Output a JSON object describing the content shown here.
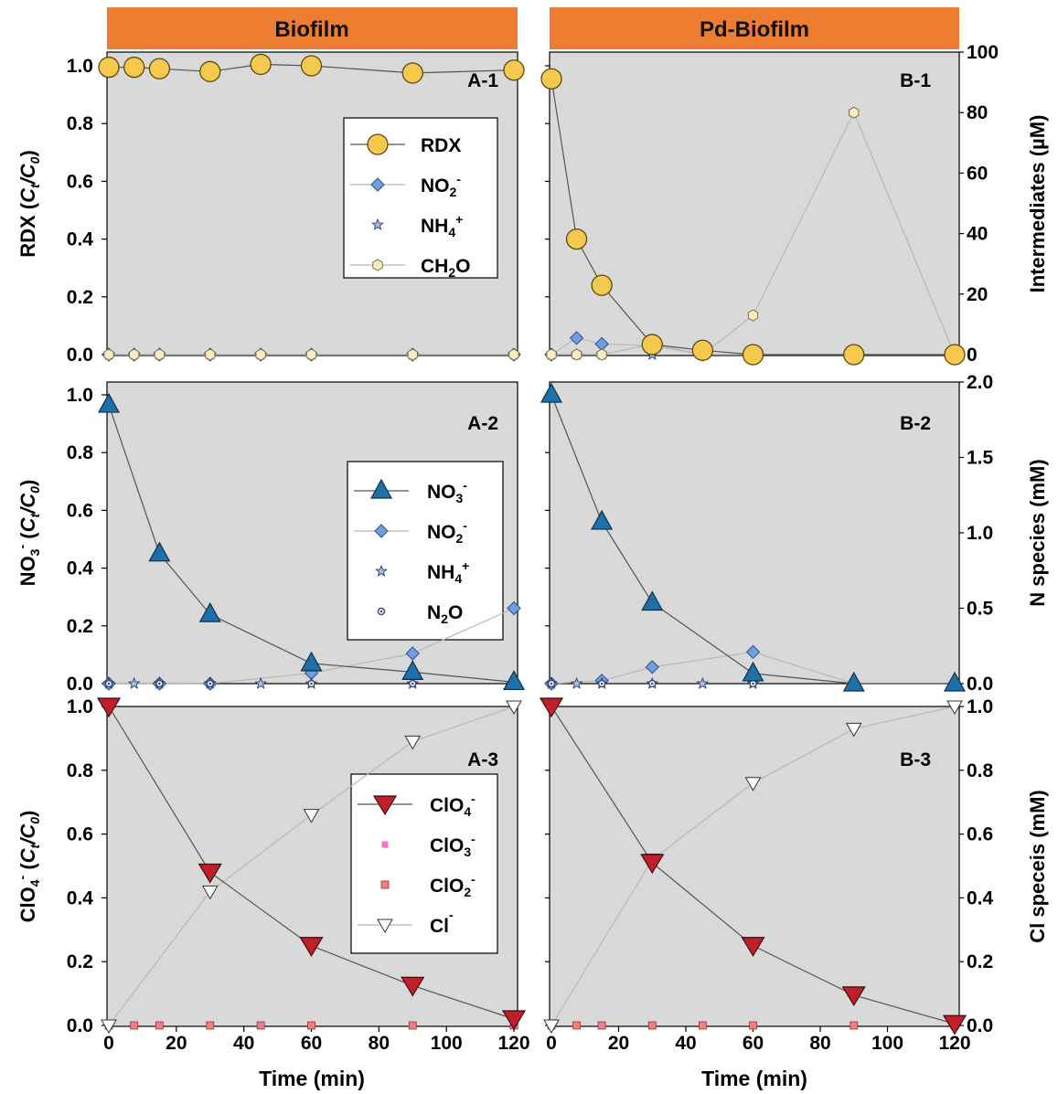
{
  "headers": {
    "left": "Biofilm",
    "right": "Pd-Biofilm"
  },
  "left_ylabels": {
    "row1": {
      "main": "RDX (",
      "c": "C",
      "t": "t",
      "slash": "/",
      "c0": "C",
      "zero": "0",
      "close": ")"
    },
    "row2": {
      "pre": "NO",
      "sub": "3",
      "sup": "-",
      "open": " (",
      "c": "C",
      "t": "t",
      "slash": "/",
      "c0": "C",
      "zero": "0",
      "close": ")"
    },
    "row3": {
      "pre": "ClO",
      "sub": "4",
      "sup": "-",
      "open": " (",
      "c": "C",
      "t": "t",
      "slash": "/",
      "c0": "C",
      "zero": "0",
      "close": ")"
    }
  },
  "right_ylabels": {
    "row1": "Intermediates (µM)",
    "row2": "N species (mM)",
    "row3": "Cl speceis (mM)"
  },
  "xlabel": "Time (min)",
  "x_ticks_text": [
    "0",
    "20",
    "40",
    "60",
    "80",
    "100",
    "120"
  ],
  "left_y_ticks_text": [
    "0.0",
    "0.2",
    "0.4",
    "0.6",
    "0.8",
    "1.0"
  ],
  "right_ticks_text": {
    "row1": [
      "0",
      "20",
      "40",
      "60",
      "80",
      "100"
    ],
    "row2": [
      "0.0",
      "0.5",
      "1.0",
      "1.5",
      "2.0"
    ],
    "row3": [
      "0.0",
      "0.2",
      "0.4",
      "0.6",
      "0.8",
      "1.0"
    ]
  },
  "panel_tags": {
    "A1": "A-1",
    "B1": "B-1",
    "A2": "A-2",
    "B2": "B-2",
    "A3": "A-3",
    "B3": "B-3"
  },
  "legends": {
    "row1": [
      {
        "pre": "RDX",
        "sub": "",
        "sup": "",
        "post": ""
      },
      {
        "pre": "NO",
        "sub": "2",
        "sup": "-",
        "post": ""
      },
      {
        "pre": "NH",
        "sub": "4",
        "sup": "+",
        "post": ""
      },
      {
        "pre": "CH",
        "sub": "2",
        "sup": "",
        "post": "O"
      }
    ],
    "row2": [
      {
        "pre": "NO",
        "sub": "3",
        "sup": "-",
        "post": ""
      },
      {
        "pre": "NO",
        "sub": "2",
        "sup": "-",
        "post": ""
      },
      {
        "pre": "NH",
        "sub": "4",
        "sup": "+",
        "post": ""
      },
      {
        "pre": "N",
        "sub": "2",
        "sup": "",
        "post": "O"
      }
    ],
    "row3": [
      {
        "pre": "ClO",
        "sub": "4",
        "sup": "-",
        "post": ""
      },
      {
        "pre": "ClO",
        "sub": "3",
        "sup": "-",
        "post": ""
      },
      {
        "pre": "ClO",
        "sub": "2",
        "sup": "-",
        "post": ""
      },
      {
        "pre": "Cl",
        "sub": "",
        "sup": "-",
        "post": ""
      }
    ]
  },
  "colors": {
    "header": "#ED7D31",
    "plot_bg": "#D9D9D9",
    "rdx": "#F5C94E",
    "nitrate": "#1F6FA8",
    "nitrite": "#6F9FE0",
    "ammonium": "#A8BEE8",
    "n2o": "#3A4E7A",
    "ch2o": "#FBEBC0",
    "perchlorate": "#C0202A",
    "chlorate": "#FF6FC8",
    "chlorite": "#F08080",
    "chloride": "#FFFFFF"
  },
  "chart_data": [
    {
      "panel": "A-1",
      "type": "line",
      "xlim": [
        0,
        120
      ],
      "y_left_lim": [
        0,
        1.0
      ],
      "y_right_lim": [
        0,
        100
      ],
      "grid": false,
      "series": [
        {
          "name": "RDX",
          "axis": "left",
          "marker": "circle-large",
          "x": [
            0,
            7.5,
            15,
            30,
            45,
            60,
            90,
            120
          ],
          "y": [
            0.995,
            0.995,
            0.99,
            0.98,
            1.005,
            1.0,
            0.975,
            0.985
          ]
        },
        {
          "name": "NO2-",
          "axis": "right",
          "marker": "diamond",
          "x": [
            0,
            7.5,
            15,
            30,
            45,
            60,
            90,
            120
          ],
          "y": [
            0,
            0,
            0,
            0,
            0,
            0,
            0,
            0
          ]
        },
        {
          "name": "NH4+",
          "axis": "right",
          "marker": "star",
          "x": [
            0,
            7.5,
            15,
            30,
            45,
            60,
            90,
            120
          ],
          "y": [
            0,
            0,
            0,
            0,
            0,
            0,
            0,
            0
          ]
        },
        {
          "name": "CH2O",
          "axis": "right",
          "marker": "hexagon",
          "x": [
            0,
            7.5,
            15,
            30,
            45,
            60,
            90,
            120
          ],
          "y": [
            0,
            0,
            0,
            0,
            0,
            0,
            0,
            0
          ]
        }
      ]
    },
    {
      "panel": "B-1",
      "type": "line",
      "xlim": [
        0,
        120
      ],
      "y_left_lim": [
        0,
        1.0
      ],
      "y_right_lim": [
        0,
        100
      ],
      "grid": false,
      "series": [
        {
          "name": "RDX",
          "axis": "left",
          "marker": "circle-large",
          "x": [
            0,
            7.5,
            15,
            30,
            45,
            60,
            90,
            120
          ],
          "y": [
            0.955,
            0.4,
            0.24,
            0.035,
            0.015,
            0.0,
            0.0,
            0.0
          ]
        },
        {
          "name": "NO2-",
          "axis": "right",
          "marker": "diamond",
          "x": [
            0,
            7.5,
            15,
            30,
            45,
            60,
            90,
            120
          ],
          "y": [
            0,
            5.5,
            3.5,
            3,
            0,
            0,
            0,
            0
          ]
        },
        {
          "name": "NH4+",
          "axis": "right",
          "marker": "star",
          "x": [
            0,
            7.5,
            15,
            30,
            45,
            60,
            90,
            120
          ],
          "y": [
            0,
            0,
            0,
            0,
            0,
            0,
            0,
            0
          ]
        },
        {
          "name": "CH2O",
          "axis": "right",
          "marker": "hexagon",
          "x": [
            0,
            7.5,
            15,
            30,
            45,
            60,
            90,
            120
          ],
          "y": [
            0,
            0,
            0,
            3.5,
            0,
            13,
            80,
            0
          ]
        }
      ]
    },
    {
      "panel": "A-2",
      "type": "line",
      "xlim": [
        0,
        120
      ],
      "y_left_lim": [
        0,
        1.0
      ],
      "y_right_lim": [
        0,
        2.0
      ],
      "grid": false,
      "series": [
        {
          "name": "NO3-",
          "axis": "left",
          "marker": "triangle-up",
          "x": [
            0,
            15,
            30,
            60,
            90,
            120
          ],
          "y": [
            0.965,
            0.45,
            0.24,
            0.07,
            0.04,
            0.005
          ]
        },
        {
          "name": "NO2-",
          "axis": "right",
          "marker": "diamond",
          "x": [
            0,
            15,
            30,
            60,
            90,
            120
          ],
          "y": [
            0,
            0,
            0,
            0.07,
            0.2,
            0.5
          ]
        },
        {
          "name": "NH4+",
          "axis": "right",
          "marker": "star",
          "x": [
            0,
            7.5,
            15,
            30,
            45,
            60,
            90,
            120
          ],
          "y": [
            0,
            0,
            0,
            0,
            0,
            0,
            0,
            0
          ]
        },
        {
          "name": "N2O",
          "axis": "right",
          "marker": "dot",
          "x": [
            0,
            15,
            30,
            60,
            90,
            120
          ],
          "y": [
            0,
            0,
            0,
            0,
            0,
            0
          ]
        }
      ]
    },
    {
      "panel": "B-2",
      "type": "line",
      "xlim": [
        0,
        120
      ],
      "y_left_lim": [
        0,
        1.0
      ],
      "y_right_lim": [
        0,
        2.0
      ],
      "grid": false,
      "series": [
        {
          "name": "NO3-",
          "axis": "left",
          "marker": "triangle-up",
          "x": [
            0,
            15,
            30,
            60,
            90,
            120
          ],
          "y": [
            1.0,
            0.56,
            0.28,
            0.035,
            0.0,
            0.0
          ]
        },
        {
          "name": "NO2-",
          "axis": "right",
          "marker": "diamond",
          "x": [
            0,
            15,
            30,
            60,
            90,
            120
          ],
          "y": [
            0,
            0.02,
            0.11,
            0.21,
            0,
            0
          ]
        },
        {
          "name": "NH4+",
          "axis": "right",
          "marker": "star",
          "x": [
            0,
            7.5,
            15,
            30,
            45,
            60,
            90,
            120
          ],
          "y": [
            0,
            0,
            0,
            0,
            0,
            0,
            0,
            0
          ]
        },
        {
          "name": "N2O",
          "axis": "right",
          "marker": "dot",
          "x": [
            0,
            15,
            30,
            60,
            90,
            120
          ],
          "y": [
            0,
            0,
            0,
            0,
            0,
            0
          ]
        }
      ]
    },
    {
      "panel": "A-3",
      "type": "line",
      "xlim": [
        0,
        120
      ],
      "y_left_lim": [
        0,
        1.0
      ],
      "y_right_lim": [
        0,
        1.0
      ],
      "grid": false,
      "series": [
        {
          "name": "ClO4-",
          "axis": "left",
          "marker": "triangle-down",
          "x": [
            0,
            30,
            60,
            90,
            120
          ],
          "y": [
            1.0,
            0.48,
            0.25,
            0.125,
            0.02
          ]
        },
        {
          "name": "ClO3-",
          "axis": "right",
          "marker": "square-small",
          "x": [
            0,
            7.5,
            15,
            30,
            45,
            60,
            90,
            120
          ],
          "y": [
            0,
            0,
            0,
            0,
            0,
            0,
            0,
            0
          ]
        },
        {
          "name": "ClO2-",
          "axis": "right",
          "marker": "square",
          "x": [
            0,
            7.5,
            15,
            30,
            45,
            60,
            90,
            120
          ],
          "y": [
            0,
            0,
            0,
            0,
            0,
            0,
            0,
            0
          ]
        },
        {
          "name": "Cl-",
          "axis": "right",
          "marker": "triangle-down-open",
          "x": [
            0,
            30,
            60,
            90,
            120
          ],
          "y": [
            0,
            0.42,
            0.66,
            0.89,
            1.0
          ]
        }
      ]
    },
    {
      "panel": "B-3",
      "type": "line",
      "xlim": [
        0,
        120
      ],
      "y_left_lim": [
        0,
        1.0
      ],
      "y_right_lim": [
        0,
        1.0
      ],
      "grid": false,
      "series": [
        {
          "name": "ClO4-",
          "axis": "left",
          "marker": "triangle-down",
          "x": [
            0,
            30,
            60,
            90,
            120
          ],
          "y": [
            1.0,
            0.51,
            0.25,
            0.095,
            0.005
          ]
        },
        {
          "name": "ClO3-",
          "axis": "right",
          "marker": "square-small",
          "x": [
            0,
            7.5,
            15,
            30,
            45,
            60,
            90,
            120
          ],
          "y": [
            0,
            0,
            0,
            0,
            0,
            0,
            0,
            0
          ]
        },
        {
          "name": "ClO2-",
          "axis": "right",
          "marker": "square",
          "x": [
            0,
            7.5,
            15,
            30,
            45,
            60,
            90,
            120
          ],
          "y": [
            0,
            0,
            0,
            0,
            0,
            0,
            0,
            0
          ]
        },
        {
          "name": "Cl-",
          "axis": "right",
          "marker": "triangle-down-open",
          "x": [
            0,
            30,
            60,
            90,
            120
          ],
          "y": [
            0,
            0.52,
            0.76,
            0.93,
            1.0
          ]
        }
      ]
    }
  ]
}
